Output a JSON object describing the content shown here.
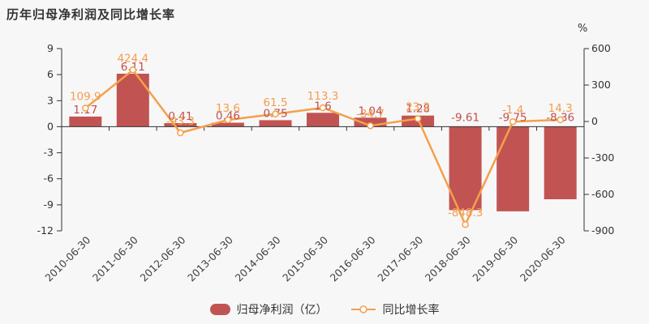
{
  "title": "历年归母净利润及同比增长率",
  "colors": {
    "background": "#f7f7f7",
    "bar": "#c15452",
    "bar_label": "#c0504d",
    "line": "#f4a04c",
    "line_label": "#f39d4d",
    "marker_fill": "#ffffff",
    "axis": "#333333",
    "axis_label": "#333333",
    "x_label": "#404040"
  },
  "chart_data": {
    "type": "bar",
    "title": "历年归母净利润及同比增长率",
    "categories": [
      "2010-06-30",
      "2011-06-30",
      "2012-06-30",
      "2013-06-30",
      "2014-06-30",
      "2015-06-30",
      "2016-06-30",
      "2017-06-30",
      "2018-06-30",
      "2019-06-30",
      "2020-06-30"
    ],
    "series": [
      {
        "name": "归母净利润（亿）",
        "type": "bar",
        "axis": "left",
        "values": [
          1.17,
          6.11,
          0.41,
          0.46,
          0.75,
          1.6,
          1.04,
          1.28,
          -9.61,
          -9.75,
          -8.36
        ]
      },
      {
        "name": "同比增长率",
        "type": "line",
        "axis": "right",
        "values": [
          109.9,
          424.4,
          -93.3,
          13.6,
          61.5,
          113.3,
          -34.7,
          23.2,
          -848.3,
          -1.4,
          14.3
        ]
      }
    ],
    "left_axis": {
      "min": -12,
      "max": 9,
      "tick_labels": [
        "9",
        "6",
        "3",
        "0",
        "-3",
        "-6",
        "-9",
        "-12"
      ]
    },
    "right_axis": {
      "min": -900,
      "max": 600,
      "tick_labels": [
        "600",
        "300",
        "0",
        "-300",
        "-600",
        "-900"
      ],
      "unit": "%"
    },
    "grid": false,
    "legend_position": "bottom",
    "x_label_rotation": 45
  }
}
